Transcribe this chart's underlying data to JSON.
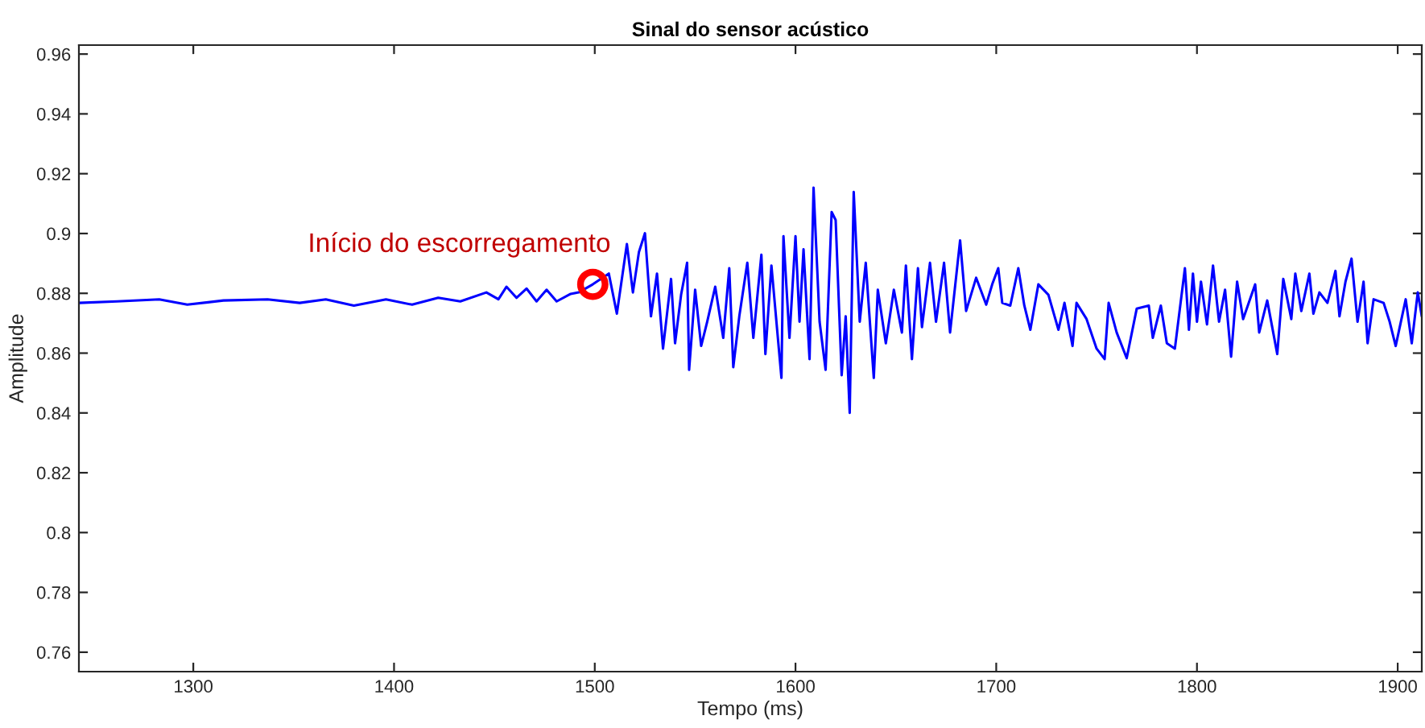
{
  "chart_data": {
    "type": "line",
    "title": "Sinal do sensor acústico",
    "xlabel": "Tempo (ms)",
    "ylabel": "Amplitude",
    "x": [
      1243,
      1262,
      1283,
      1297,
      1315,
      1337,
      1353,
      1366,
      1380,
      1396,
      1409,
      1422,
      1433,
      1446,
      1452,
      1456,
      1461,
      1466,
      1471,
      1476,
      1481,
      1488,
      1492,
      1499,
      1507,
      1511,
      1516,
      1519,
      1522,
      1525,
      1528,
      1531,
      1534,
      1538,
      1540,
      1543,
      1546,
      1547,
      1550,
      1553,
      1556,
      1560,
      1564,
      1567,
      1569,
      1572,
      1576,
      1579,
      1583,
      1585,
      1588,
      1593,
      1594,
      1597,
      1600,
      1602,
      1604,
      1607,
      1609,
      1612,
      1615,
      1618,
      1620,
      1623,
      1625,
      1627,
      1629,
      1632,
      1635,
      1639,
      1641,
      1645,
      1649,
      1653,
      1655,
      1658,
      1661,
      1663,
      1667,
      1670,
      1674,
      1677,
      1682,
      1685,
      1690,
      1695,
      1698,
      1701,
      1703,
      1707,
      1711,
      1714,
      1717,
      1721,
      1726,
      1731,
      1734,
      1738,
      1740,
      1745,
      1750,
      1754,
      1756,
      1760,
      1765,
      1770,
      1776,
      1778,
      1782,
      1785,
      1789,
      1794,
      1796,
      1798,
      1800,
      1802,
      1805,
      1808,
      1811,
      1814,
      1817,
      1820,
      1823,
      1829,
      1831,
      1835,
      1840,
      1843,
      1847,
      1849,
      1852,
      1856,
      1858,
      1861,
      1865,
      1869,
      1871,
      1874,
      1877,
      1880,
      1883,
      1885,
      1888,
      1893,
      1896,
      1899,
      1904,
      1907,
      1910,
      1912
    ],
    "series": [
      {
        "color": "#0000ff",
        "values": [
          0.8768,
          0.8773,
          0.878,
          0.8762,
          0.8776,
          0.878,
          0.8768,
          0.878,
          0.8759,
          0.878,
          0.8762,
          0.8785,
          0.8773,
          0.8803,
          0.878,
          0.8822,
          0.8785,
          0.8816,
          0.8773,
          0.8812,
          0.8773,
          0.8798,
          0.8803,
          0.883,
          0.8866,
          0.8732,
          0.8965,
          0.8803,
          0.8938,
          0.9001,
          0.8723,
          0.8866,
          0.8615,
          0.8848,
          0.8633,
          0.8795,
          0.8902,
          0.8544,
          0.8812,
          0.8624,
          0.8705,
          0.8822,
          0.8651,
          0.8884,
          0.8553,
          0.8723,
          0.8902,
          0.8651,
          0.8929,
          0.8597,
          0.8893,
          0.8517,
          0.8991,
          0.8651,
          0.8991,
          0.8705,
          0.8947,
          0.858,
          0.9153,
          0.8705,
          0.8544,
          0.9072,
          0.9045,
          0.8526,
          0.8723,
          0.84,
          0.9139,
          0.8705,
          0.8902,
          0.8517,
          0.8812,
          0.8633,
          0.8812,
          0.8669,
          0.8893,
          0.858,
          0.8884,
          0.8687,
          0.8902,
          0.8705,
          0.8902,
          0.8669,
          0.8977,
          0.8741,
          0.8852,
          0.8762,
          0.883,
          0.8884,
          0.8768,
          0.8759,
          0.8884,
          0.8759,
          0.8678,
          0.883,
          0.8795,
          0.8678,
          0.8768,
          0.8624,
          0.8768,
          0.8714,
          0.8615,
          0.858,
          0.8768,
          0.8669,
          0.8583,
          0.8749,
          0.8759,
          0.8651,
          0.8759,
          0.8633,
          0.8615,
          0.8884,
          0.8678,
          0.8866,
          0.8705,
          0.8839,
          0.8696,
          0.8893,
          0.8705,
          0.8812,
          0.8588,
          0.8839,
          0.8714,
          0.883,
          0.8669,
          0.8776,
          0.8597,
          0.8848,
          0.8714,
          0.8866,
          0.8741,
          0.8866,
          0.8732,
          0.8803,
          0.8768,
          0.8875,
          0.8723,
          0.8839,
          0.8916,
          0.8705,
          0.8839,
          0.8633,
          0.878,
          0.8768,
          0.8705,
          0.8624,
          0.878,
          0.8633,
          0.8803,
          0.8723
        ]
      }
    ],
    "xlim": [
      1243,
      1912
    ],
    "xticks": [
      1300,
      1400,
      1500,
      1600,
      1700,
      1800,
      1900
    ],
    "ylim": [
      0.7535,
      0.963
    ],
    "yticks": [
      0.76,
      0.78,
      0.8,
      0.82,
      0.84,
      0.86,
      0.88,
      0.9,
      0.92,
      0.94,
      0.96
    ],
    "grid": false,
    "legend": false,
    "annotations": [
      {
        "text": "Início do escorregamento",
        "x": 1499,
        "y": 0.883
      }
    ]
  }
}
